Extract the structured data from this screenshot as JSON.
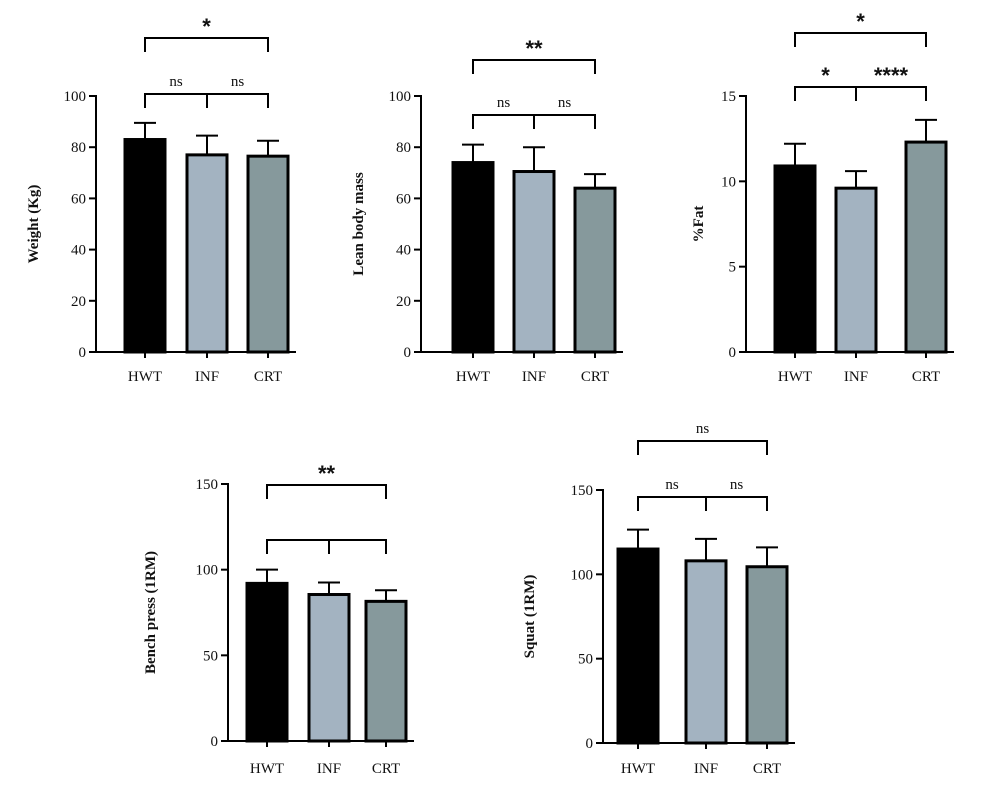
{
  "colors": {
    "HWT": "#000000",
    "INF": "#a3b3c1",
    "CRT": "#86999c"
  },
  "chart_data": [
    {
      "type": "bar",
      "categories": [
        "HWT",
        "INF",
        "CRT"
      ],
      "values": [
        83,
        77,
        76.5
      ],
      "errors": [
        6.5,
        7.5,
        6
      ],
      "ylabel": "Weight (Kg)",
      "ylim": [
        0,
        100
      ],
      "yticks": [
        0,
        20,
        40,
        60,
        80,
        100
      ],
      "tick_labels": [
        "0",
        "20",
        "40",
        "60",
        "80",
        "100"
      ],
      "significance": [
        {
          "from": 0,
          "to": 1,
          "label": "ns",
          "tier": 0
        },
        {
          "from": 1,
          "to": 2,
          "label": "ns",
          "tier": 0
        },
        {
          "from": 0,
          "to": 2,
          "label": "*",
          "tier": 1
        }
      ]
    },
    {
      "type": "bar",
      "categories": [
        "HWT",
        "INF",
        "CRT"
      ],
      "values": [
        74,
        70.5,
        64
      ],
      "errors": [
        7,
        9.5,
        5.5
      ],
      "ylabel": "Lean body mass",
      "ylim": [
        0,
        100
      ],
      "yticks": [
        0,
        20,
        40,
        60,
        80,
        100
      ],
      "tick_labels": [
        "0",
        "20",
        "40",
        "60",
        "80",
        "100"
      ],
      "significance": [
        {
          "from": 0,
          "to": 1,
          "label": "ns",
          "tier": 0
        },
        {
          "from": 1,
          "to": 2,
          "label": "ns",
          "tier": 0
        },
        {
          "from": 0,
          "to": 2,
          "label": "**",
          "tier": 1
        }
      ]
    },
    {
      "type": "bar",
      "categories": [
        "HWT",
        "INF",
        "CRT"
      ],
      "values": [
        10.9,
        9.6,
        12.3
      ],
      "errors": [
        1.3,
        1.0,
        1.3
      ],
      "ylabel": "%Fat",
      "ylim": [
        0,
        15
      ],
      "yticks": [
        0,
        5,
        10,
        15
      ],
      "tick_labels": [
        "0",
        "5",
        "10",
        "15"
      ],
      "significance": [
        {
          "from": 0,
          "to": 1,
          "label": "*",
          "tier": 0
        },
        {
          "from": 1,
          "to": 2,
          "label": "****",
          "tier": 0
        },
        {
          "from": 0,
          "to": 2,
          "label": "*",
          "tier": 1
        }
      ]
    },
    {
      "type": "bar",
      "categories": [
        "HWT",
        "INF",
        "CRT"
      ],
      "values": [
        92,
        85.5,
        81.5
      ],
      "errors": [
        8,
        7,
        6.5
      ],
      "ylabel": "Bench press (1RM)",
      "ylim": [
        0,
        150
      ],
      "yticks": [
        0,
        50,
        100,
        150
      ],
      "tick_labels": [
        "0",
        "50",
        "100",
        "150"
      ],
      "significance": [
        {
          "from": 0,
          "to": 1,
          "label": "",
          "tier": 0
        },
        {
          "from": 1,
          "to": 2,
          "label": "",
          "tier": 0
        },
        {
          "from": 0,
          "to": 2,
          "label": "**",
          "tier": 1
        }
      ]
    },
    {
      "type": "bar",
      "categories": [
        "HWT",
        "INF",
        "CRT"
      ],
      "values": [
        115,
        108,
        104.5
      ],
      "errors": [
        11.5,
        13,
        11.5
      ],
      "ylabel": "Squat (1RM)",
      "ylim": [
        0,
        150
      ],
      "yticks": [
        0,
        50,
        100,
        150
      ],
      "tick_labels": [
        "0",
        "50",
        "100",
        "150"
      ],
      "significance": [
        {
          "from": 0,
          "to": 1,
          "label": "ns",
          "tier": 0
        },
        {
          "from": 1,
          "to": 2,
          "label": "ns",
          "tier": 0
        },
        {
          "from": 0,
          "to": 2,
          "label": "ns",
          "tier": 1
        }
      ]
    }
  ]
}
